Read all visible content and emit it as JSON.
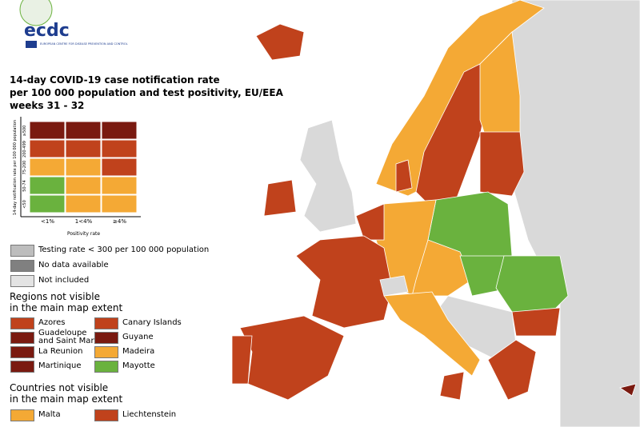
{
  "logo": {
    "name": "ecdc",
    "subtitle": "EUROPEAN CENTRE FOR DISEASE PREVENTION AND CONTROL"
  },
  "title": [
    "14-day COVID-19 case notification rate",
    "per 100 000 population and test positivity, EU/EEA",
    "weeks 31 - 32"
  ],
  "matrix": {
    "y_axis_label": "14-day notification rate per 100 000 population",
    "rows": [
      "≥500",
      "200-499",
      "75-200",
      "50-74",
      "<50"
    ],
    "columns": [
      "<1%",
      "1<4%",
      "≥4%"
    ],
    "x_axis_label": "Positivity rate",
    "colors": [
      [
        "#7a1a10",
        "#7a1a10",
        "#7a1a10"
      ],
      [
        "#c0421c",
        "#c0421c",
        "#c0421c"
      ],
      [
        "#f4a935",
        "#f4a935",
        "#c0421c"
      ],
      [
        "#6ab23e",
        "#f4a935",
        "#f4a935"
      ],
      [
        "#6ab23e",
        "#f4a935",
        "#f4a935"
      ]
    ]
  },
  "legend": [
    {
      "label": "Testing rate < 300 per 100 000 population",
      "color": "#bdbdbd"
    },
    {
      "label": "No data available",
      "color": "#808080"
    },
    {
      "label": "Not included",
      "color": "#e3e3e3"
    }
  ],
  "regions": {
    "heading": [
      "Regions not visible",
      "in the main map extent"
    ],
    "items": [
      {
        "label": "Azores",
        "color": "#c0421c"
      },
      {
        "label": "Guadeloupe\nand Saint Martin",
        "color": "#7a1a10"
      },
      {
        "label": "La Reunion",
        "color": "#7a1a10"
      },
      {
        "label": "Martinique",
        "color": "#7a1a10"
      },
      {
        "label": "Canary Islands",
        "color": "#c0421c"
      },
      {
        "label": "Guyane",
        "color": "#7a1a10"
      },
      {
        "label": "Madeira",
        "color": "#f4a935"
      },
      {
        "label": "Mayotte",
        "color": "#6ab23e"
      }
    ]
  },
  "countries": {
    "heading": [
      "Countries not visible",
      "in the main map extent"
    ],
    "items": [
      {
        "label": "Malta",
        "color": "#f4a935"
      },
      {
        "label": "Liechtenstein",
        "color": "#c0421c"
      }
    ]
  }
}
